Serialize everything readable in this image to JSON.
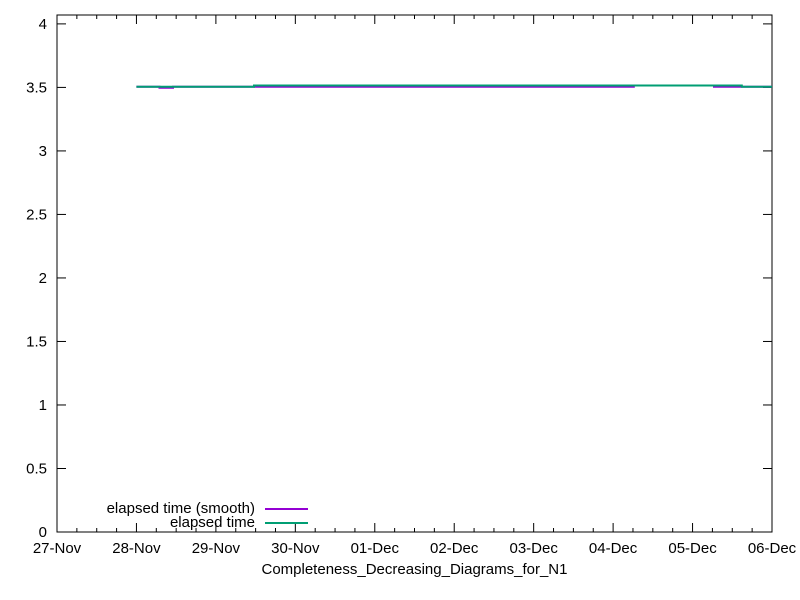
{
  "chart_data": {
    "type": "line",
    "title": "",
    "xlabel": "Completeness_Decreasing_Diagrams_for_N1",
    "ylabel": "",
    "x_unit": "days since 27-Nov",
    "xlim": [
      0,
      9
    ],
    "ylim": [
      0,
      4.07
    ],
    "grid": false,
    "x_ticks": [
      0,
      1,
      2,
      3,
      4,
      5,
      6,
      7,
      8,
      9
    ],
    "x_tick_labels": [
      "27-Nov",
      "28-Nov",
      "29-Nov",
      "30-Nov",
      "01-Dec",
      "02-Dec",
      "03-Dec",
      "04-Dec",
      "05-Dec",
      "06-Dec"
    ],
    "x_minor_tick_step": 0.25,
    "y_ticks": [
      0,
      0.5,
      1,
      1.5,
      2,
      2.5,
      3,
      3.5,
      4
    ],
    "y_tick_labels": [
      "0",
      "0.5",
      "1",
      "1.5",
      "2",
      "2.5",
      "3",
      "3.5",
      "4"
    ],
    "axis_color": "#000000",
    "background_color": "#ffffff",
    "legend": {
      "position": "bottom-left",
      "entries": [
        {
          "label": "elapsed time (smooth)",
          "color": "#9400d3"
        },
        {
          "label": "elapsed time",
          "color": "#009e73"
        }
      ]
    },
    "series": [
      {
        "name": "elapsed time (smooth)",
        "color": "#9400d3",
        "x": [
          1.0,
          1.29,
          1.29,
          1.46,
          1.46,
          2.5,
          7.26,
          7.26,
          8.27,
          8.27,
          9.0
        ],
        "y": [
          3.505,
          3.505,
          3.497,
          3.497,
          3.505,
          3.505,
          3.505,
          3.515,
          3.515,
          3.505,
          3.505
        ]
      },
      {
        "name": "elapsed time",
        "color": "#009e73",
        "x": [
          1.0,
          2.48,
          2.48,
          8.62,
          8.62,
          9.0
        ],
        "y": [
          3.505,
          3.505,
          3.515,
          3.515,
          3.505,
          3.505
        ]
      }
    ]
  }
}
